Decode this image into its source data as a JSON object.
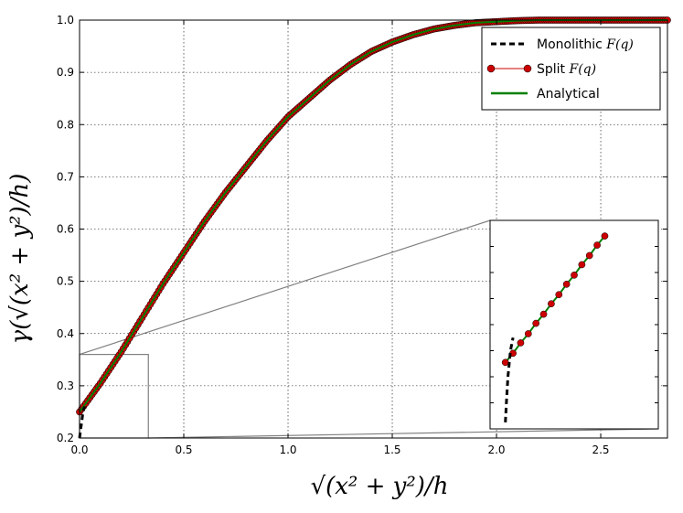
{
  "chart_data": {
    "type": "line",
    "xlabel": "√(x² + y²)/h",
    "ylabel": "γ(√(x² + y²)/h)",
    "xlim": [
      0.0,
      2.82
    ],
    "ylim": [
      0.2,
      1.0
    ],
    "x_ticks": [
      "0.0",
      "0.5",
      "1.0",
      "1.5",
      "2.0",
      "2.5"
    ],
    "y_ticks": [
      "0.2",
      "0.3",
      "0.4",
      "0.5",
      "0.6",
      "0.7",
      "0.8",
      "0.9",
      "1.0"
    ],
    "grid": true,
    "legend_position": "top-right",
    "series": [
      {
        "name": "Monolithic F(q)",
        "style": "dashed",
        "color": "#000000",
        "x": [
          0.0,
          0.005,
          0.01,
          0.015,
          0.02,
          0.025
        ],
        "y": [
          0.2,
          0.215,
          0.23,
          0.245,
          0.255,
          0.26
        ]
      },
      {
        "name": "Split F(q)",
        "style": "line-with-markers",
        "color": "#cc0000",
        "marker_color": "#cc0000",
        "x": [
          0.0,
          0.1,
          0.2,
          0.3,
          0.4,
          0.5,
          0.6,
          0.7,
          0.8,
          0.9,
          1.0,
          1.1,
          1.2,
          1.3,
          1.4,
          1.5,
          1.6,
          1.7,
          1.8,
          1.9,
          2.0,
          2.1,
          2.2,
          2.3,
          2.4,
          2.5,
          2.6,
          2.7,
          2.82
        ],
        "y": [
          0.25,
          0.305,
          0.365,
          0.43,
          0.495,
          0.555,
          0.615,
          0.67,
          0.72,
          0.77,
          0.815,
          0.85,
          0.885,
          0.915,
          0.94,
          0.958,
          0.972,
          0.983,
          0.99,
          0.995,
          0.997,
          0.999,
          1.0,
          1.0,
          1.0,
          1.0,
          1.0,
          1.0,
          1.0
        ]
      },
      {
        "name": "Analytical",
        "style": "solid",
        "color": "#008000",
        "x": [
          0.0,
          0.1,
          0.2,
          0.3,
          0.4,
          0.5,
          0.6,
          0.7,
          0.8,
          0.9,
          1.0,
          1.1,
          1.2,
          1.3,
          1.4,
          1.5,
          1.6,
          1.7,
          1.8,
          1.9,
          2.0,
          2.1,
          2.2,
          2.3,
          2.4,
          2.5,
          2.6,
          2.7,
          2.82
        ],
        "y": [
          0.25,
          0.305,
          0.365,
          0.43,
          0.495,
          0.555,
          0.615,
          0.67,
          0.72,
          0.77,
          0.815,
          0.85,
          0.885,
          0.915,
          0.94,
          0.958,
          0.972,
          0.983,
          0.99,
          0.995,
          0.997,
          0.999,
          1.0,
          1.0,
          1.0,
          1.0,
          1.0,
          1.0,
          1.0
        ]
      }
    ],
    "legend": [
      {
        "text": "Monolithic ",
        "math": "F(q)",
        "style": "dashed",
        "color": "#000000"
      },
      {
        "text": "Split ",
        "math": "F(q)",
        "style": "line-with-markers",
        "color": "#cc0000"
      },
      {
        "text": "Analytical",
        "math": "",
        "style": "solid",
        "color": "#008000"
      }
    ],
    "inset": {
      "xlim": [
        0.0,
        0.33
      ],
      "ylim": [
        0.2,
        0.36
      ],
      "monolithic": {
        "x": [
          0.03,
          0.032,
          0.035,
          0.04,
          0.045
        ],
        "y": [
          0.205,
          0.22,
          0.24,
          0.26,
          0.27
        ]
      },
      "split": {
        "x": [
          0.03,
          0.045,
          0.06,
          0.075,
          0.09,
          0.105,
          0.12,
          0.135,
          0.15,
          0.165,
          0.18,
          0.195,
          0.21,
          0.225
        ],
        "y": [
          0.251,
          0.258,
          0.266,
          0.273,
          0.281,
          0.288,
          0.296,
          0.303,
          0.311,
          0.318,
          0.326,
          0.333,
          0.341,
          0.348
        ]
      }
    }
  }
}
